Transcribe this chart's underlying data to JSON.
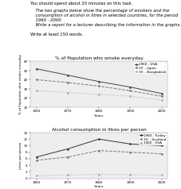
{
  "text_lines": [
    [
      "normal",
      "You should spend about 20 minutes on this task."
    ],
    [
      "italic",
      "    The two graphs below show the percentage of smokers and the"
    ],
    [
      "italic",
      "    consumption of alcohol in litres in selected countries, for the period"
    ],
    [
      "italic",
      "    1960 - 2000."
    ],
    [
      "italic",
      "    Write a report for a lecturer describing the information in the graphs."
    ],
    [
      "normal",
      "Write at least 150 words."
    ]
  ],
  "years": [
    1960,
    1970,
    1980,
    1990,
    2000
  ],
  "smoking": {
    "title": "% of Population who smoke everyday",
    "ylabel": "% of Population who smoke everyday",
    "series": [
      {
        "label": "1960 - USA",
        "color": "#444444",
        "ls": "-",
        "values": [
          52,
          45,
          38,
          32,
          25
        ]
      },
      {
        "label": "19  - Japan",
        "color": "#777777",
        "ls": "--",
        "values": [
          40,
          37,
          33,
          28,
          22
        ]
      },
      {
        "label": "19  - Bangladesh",
        "color": "#aaaaaa",
        "ls": ":",
        "values": [
          28,
          26,
          24,
          22,
          18
        ]
      }
    ],
    "ylim": [
      10,
      60
    ],
    "yticks": [
      10,
      20,
      30,
      40,
      50,
      60
    ]
  },
  "alcohol": {
    "title": "Alcohol consumption in litres per person",
    "ylabel": "Litres per person",
    "series": [
      {
        "label": "1960 - Turkey",
        "color": "#333333",
        "ls": "-",
        "values": [
          6.5,
          9.0,
          12.0,
          10.5,
          10.0
        ]
      },
      {
        "label": "19  - Scotland",
        "color": "#777777",
        "ls": "--",
        "values": [
          5.5,
          6.5,
          8.5,
          8.0,
          7.5
        ]
      },
      {
        "label": "1960 - USA",
        "color": "#aaaaaa",
        "ls": ":",
        "values": [
          0.8,
          1.0,
          1.2,
          1.1,
          1.0
        ]
      }
    ],
    "ylim": [
      0,
      14
    ],
    "yticks": [
      0,
      2,
      4,
      6,
      8,
      10,
      12,
      14
    ]
  },
  "bg_chart": "#eeeeee",
  "bg_fig": "#ffffff",
  "fs_text": 3.8,
  "fs_title": 4.2,
  "fs_label": 3.2,
  "fs_tick": 3.0,
  "fs_legend": 3.0
}
